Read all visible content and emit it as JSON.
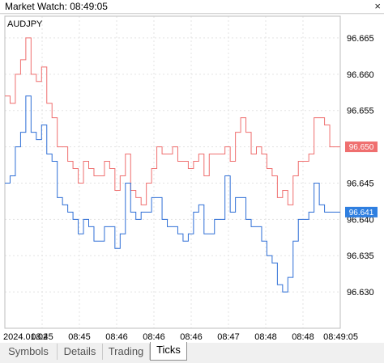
{
  "window": {
    "title": "Market Watch: 08:49:05"
  },
  "chart": {
    "symbol": "AUDJPY",
    "bid_price_label": "96.650",
    "ask_price_label": "96.641"
  },
  "tabs": [
    {
      "label": "Symbols",
      "active": false
    },
    {
      "label": "Details",
      "active": false
    },
    {
      "label": "Trading",
      "active": false
    },
    {
      "label": "Ticks",
      "active": true
    }
  ],
  "colors": {
    "upper_series": "#ef6f6f",
    "lower_series": "#2f6fd6",
    "grid": "#e3e3e3",
    "upper_tag": "#ef6f6f",
    "lower_tag": "#2f7fe0"
  },
  "chart_data": {
    "type": "line",
    "ylim": [
      96.625,
      96.668
    ],
    "y_ticks": [
      "96.665",
      "96.660",
      "96.655",
      "96.650",
      "96.645",
      "96.640",
      "96.635",
      "96.630"
    ],
    "y_tick_values": [
      96.665,
      96.66,
      96.655,
      96.65,
      96.645,
      96.64,
      96.635,
      96.63
    ],
    "x_ticks": [
      "2024.01.02",
      "08:45",
      "08:45",
      "08:46",
      "08:46",
      "08:46",
      "08:47",
      "08:48",
      "08:48",
      "08:49:05"
    ],
    "series": [
      {
        "values": [
          96.657,
          96.656,
          96.66,
          96.662,
          96.665,
          96.66,
          96.659,
          96.661,
          96.656,
          96.654,
          96.65,
          96.65,
          96.648,
          96.647,
          96.645,
          96.648,
          96.647,
          96.646,
          96.646,
          96.648,
          96.647,
          96.644,
          96.646,
          96.649,
          96.644,
          96.643,
          96.642,
          96.645,
          96.647,
          96.65,
          96.649,
          96.649,
          96.65,
          96.648,
          96.648,
          96.647,
          96.648,
          96.649,
          96.646,
          96.649,
          96.649,
          96.649,
          96.65,
          96.648,
          96.652,
          96.654,
          96.652,
          96.649,
          96.65,
          96.649,
          96.647,
          96.646,
          96.643,
          96.644,
          96.642,
          96.646,
          96.648,
          96.648,
          96.649,
          96.654,
          96.654,
          96.653,
          96.65,
          96.65,
          96.65
        ]
      },
      {
        "values": [
          96.645,
          96.646,
          96.65,
          96.652,
          96.657,
          96.652,
          96.651,
          96.653,
          96.649,
          96.648,
          96.643,
          96.642,
          96.641,
          96.64,
          96.638,
          96.64,
          96.639,
          96.637,
          96.637,
          96.639,
          96.639,
          96.636,
          96.638,
          96.645,
          96.641,
          96.64,
          96.641,
          96.641,
          96.643,
          96.643,
          96.64,
          96.639,
          96.639,
          96.638,
          96.637,
          96.638,
          96.641,
          96.642,
          96.638,
          96.638,
          96.64,
          96.64,
          96.646,
          96.641,
          96.643,
          96.643,
          96.64,
          96.639,
          96.639,
          96.637,
          96.635,
          96.634,
          96.631,
          96.63,
          96.632,
          96.637,
          96.64,
          96.64,
          96.641,
          96.645,
          96.642,
          96.641,
          96.641,
          96.641,
          96.641
        ]
      }
    ]
  }
}
